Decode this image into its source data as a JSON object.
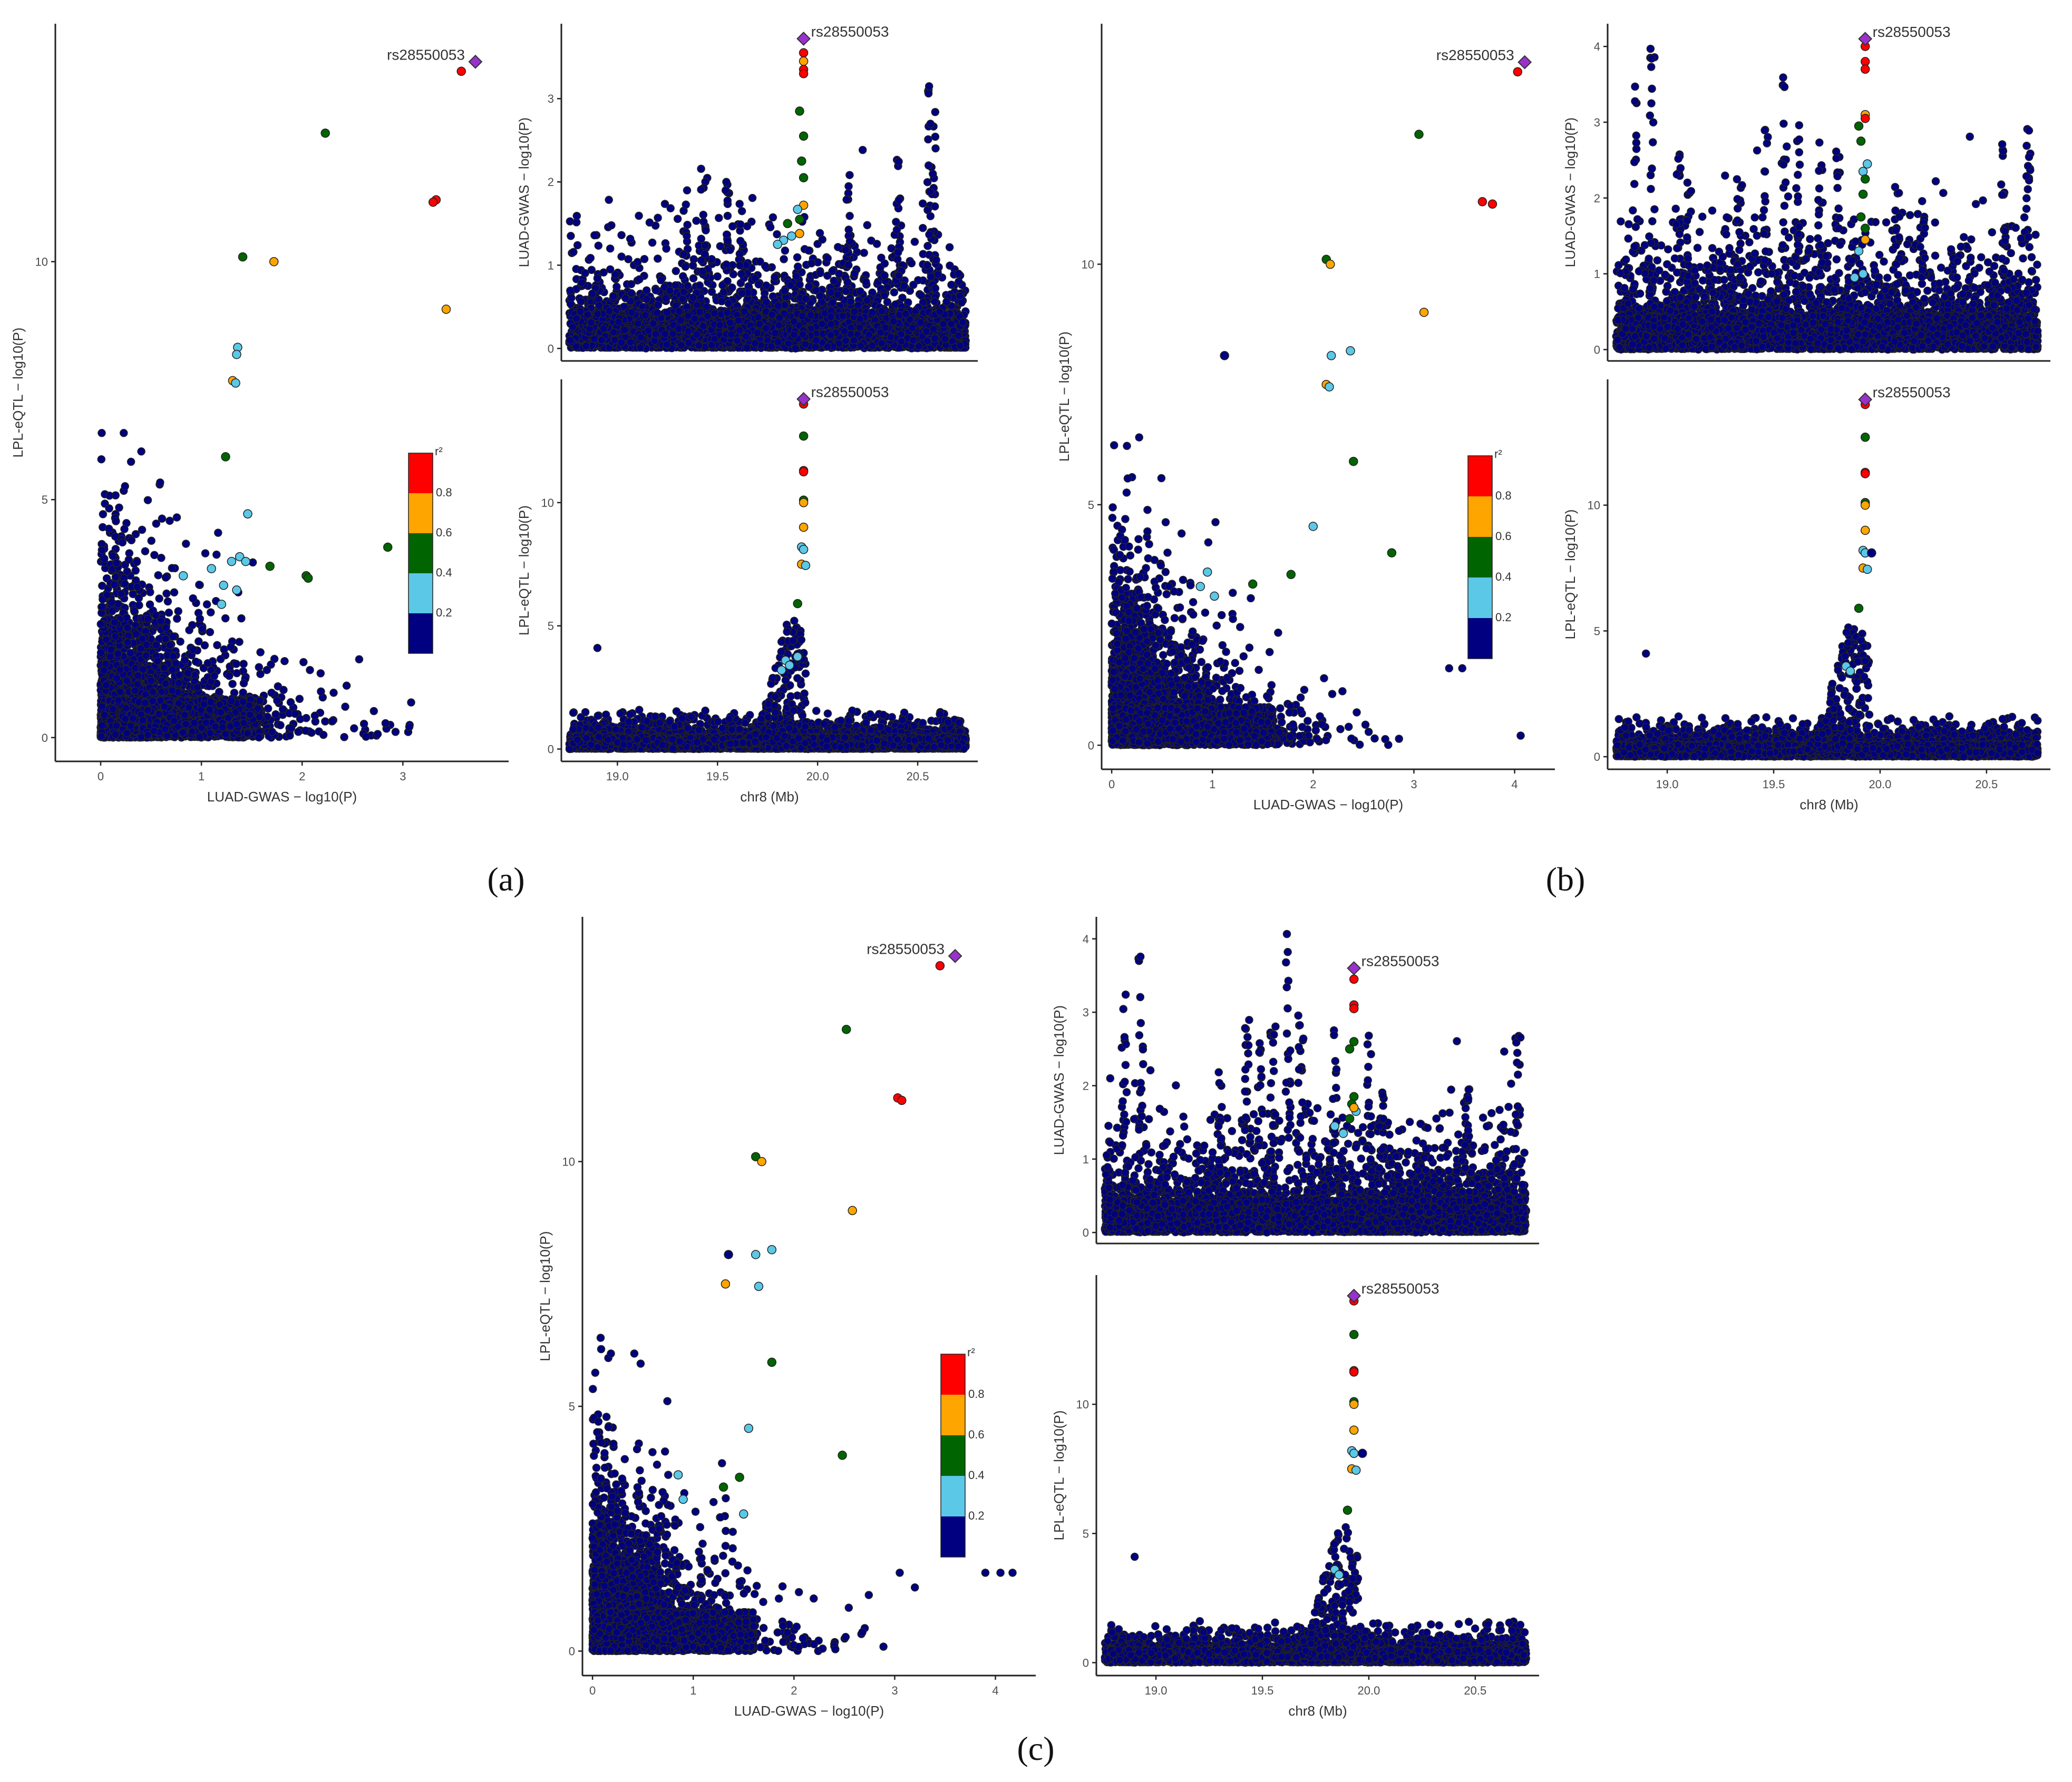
{
  "figure": {
    "panel_labels": [
      "(a)",
      "(b)",
      "(c)"
    ],
    "lead_snp": "rs28550053",
    "colors": {
      "ld_bins": [
        "#000080",
        "#5bc8e8",
        "#006400",
        "#ffa500",
        "#ff0000"
      ],
      "lead": "#9932cc",
      "axis": "#222222",
      "tick_text": "#4d4d4d"
    }
  },
  "chart_data": [
    {
      "id": "a-scatter",
      "panel": "(a)",
      "type": "scatter",
      "xlabel": "LUAD-GWAS − log10(P)",
      "ylabel": "LPL-eQTL − log10(P)",
      "xlim": [
        -0.45,
        4.05
      ],
      "ylim": [
        -0.5,
        15.0
      ],
      "xticks": [
        0,
        1,
        2,
        3
      ],
      "yticks": [
        0,
        5,
        10
      ],
      "lead": {
        "x": 3.72,
        "y": 14.2,
        "label": "rs28550053"
      },
      "points": [
        [
          3.58,
          14.0,
          4
        ],
        [
          3.33,
          11.3,
          4
        ],
        [
          3.3,
          11.25,
          4
        ],
        [
          2.23,
          12.7,
          2
        ],
        [
          1.41,
          10.1,
          2
        ],
        [
          1.72,
          10.0,
          3
        ],
        [
          3.43,
          9.0,
          3
        ],
        [
          1.36,
          8.2,
          1
        ],
        [
          1.35,
          8.05,
          1
        ],
        [
          1.31,
          7.5,
          3
        ],
        [
          1.34,
          7.45,
          1
        ],
        [
          1.24,
          5.9,
          2
        ],
        [
          2.85,
          4.0,
          2
        ],
        [
          1.68,
          3.6,
          2
        ],
        [
          2.04,
          3.4,
          2
        ],
        [
          2.06,
          3.35,
          2
        ],
        [
          0.82,
          3.4,
          1
        ],
        [
          1.1,
          3.55,
          1
        ],
        [
          1.3,
          3.7,
          1
        ],
        [
          1.38,
          3.8,
          1
        ],
        [
          1.44,
          3.7,
          1
        ],
        [
          1.22,
          3.2,
          1
        ],
        [
          1.35,
          3.1,
          1
        ],
        [
          1.2,
          2.8,
          1
        ],
        [
          1.46,
          4.7,
          1
        ]
      ],
      "background": {
        "seed": 11,
        "count": 2800,
        "shape": "eqtl_scatter",
        "gx": 3.9,
        "gy": 6.4
      },
      "legend": {
        "title": "r²",
        "labels": [
          "0.2",
          "0.4",
          "0.6",
          "0.8"
        ]
      }
    },
    {
      "id": "a-gwas",
      "panel": "(a)",
      "type": "scatter",
      "xlabel": "",
      "ylabel": "LUAD-GWAS − log10(P)",
      "xlim": [
        18.72,
        20.8
      ],
      "ylim": [
        -0.15,
        3.9
      ],
      "xticks": [],
      "yticks": [
        0,
        1,
        2,
        3
      ],
      "lead": {
        "x": 19.93,
        "y": 3.72,
        "label": "rs28550053"
      },
      "points": [
        [
          19.93,
          3.55,
          4
        ],
        [
          19.93,
          3.45,
          3
        ],
        [
          19.93,
          3.35,
          4
        ],
        [
          19.93,
          3.3,
          4
        ],
        [
          19.91,
          2.85,
          2
        ],
        [
          19.93,
          2.55,
          2
        ],
        [
          19.92,
          2.25,
          2
        ],
        [
          19.93,
          2.05,
          2
        ],
        [
          19.93,
          1.72,
          3
        ],
        [
          19.9,
          1.67,
          1
        ],
        [
          19.91,
          1.55,
          2
        ],
        [
          19.85,
          1.5,
          2
        ],
        [
          19.87,
          1.35,
          1
        ],
        [
          19.83,
          1.3,
          1
        ],
        [
          19.8,
          1.25,
          1
        ],
        [
          19.91,
          1.38,
          3
        ]
      ],
      "background": {
        "seed": 23,
        "count": 3200,
        "shape": "gwas",
        "yscale": 1.0,
        "peaks": [
          [
            19.34,
            1.9
          ],
          [
            19.43,
            2.3
          ],
          [
            19.55,
            2.0
          ],
          [
            19.62,
            1.8
          ],
          [
            20.15,
            2.2
          ],
          [
            20.4,
            2.3
          ],
          [
            20.58,
            2.9
          ],
          [
            20.56,
            3.2
          ]
        ]
      }
    },
    {
      "id": "a-eqtl",
      "panel": "(a)",
      "type": "scatter",
      "xlabel": "chr8 (Mb)",
      "ylabel": "LPL-eQTL − log10(P)",
      "xlim": [
        18.72,
        20.8
      ],
      "ylim": [
        -0.5,
        15.0
      ],
      "xticks": [
        19.0,
        19.5,
        20.0,
        20.5
      ],
      "yticks": [
        0,
        5,
        10
      ],
      "lead": {
        "x": 19.93,
        "y": 14.2,
        "label": "rs28550053"
      },
      "points": [
        [
          19.93,
          14.0,
          4
        ],
        [
          19.93,
          12.7,
          2
        ],
        [
          19.93,
          11.3,
          4
        ],
        [
          19.93,
          11.25,
          4
        ],
        [
          19.93,
          10.1,
          2
        ],
        [
          19.93,
          10.0,
          3
        ],
        [
          19.93,
          9.0,
          3
        ],
        [
          19.92,
          8.2,
          1
        ],
        [
          19.93,
          8.1,
          1
        ],
        [
          19.92,
          7.5,
          3
        ],
        [
          19.94,
          7.45,
          1
        ],
        [
          19.9,
          5.9,
          2
        ],
        [
          19.84,
          3.6,
          1
        ],
        [
          19.86,
          3.4,
          1
        ],
        [
          19.82,
          3.2,
          1
        ],
        [
          19.9,
          3.75,
          1
        ]
      ],
      "background": {
        "seed": 37,
        "count": 3200,
        "shape": "eqtl_locus"
      }
    },
    {
      "id": "b-scatter",
      "panel": "(b)",
      "type": "scatter",
      "xlabel": "LUAD-GWAS − log10(P)",
      "ylabel": "LPL-eQTL − log10(P)",
      "xlim": [
        -0.1,
        4.4
      ],
      "ylim": [
        -0.5,
        15.0
      ],
      "xticks": [
        0,
        1,
        2,
        3,
        4
      ],
      "yticks": [
        0,
        5,
        10
      ],
      "lead": {
        "x": 4.1,
        "y": 14.2,
        "label": "rs28550053"
      },
      "points": [
        [
          4.03,
          14.0,
          4
        ],
        [
          3.68,
          11.3,
          4
        ],
        [
          3.78,
          11.25,
          4
        ],
        [
          3.05,
          12.7,
          2
        ],
        [
          2.13,
          10.1,
          2
        ],
        [
          2.17,
          10.0,
          3
        ],
        [
          3.1,
          9.0,
          3
        ],
        [
          2.18,
          8.1,
          1
        ],
        [
          2.37,
          8.2,
          1
        ],
        [
          2.13,
          7.5,
          3
        ],
        [
          2.16,
          7.45,
          1
        ],
        [
          2.4,
          5.9,
          2
        ],
        [
          2.78,
          4.0,
          2
        ],
        [
          1.4,
          3.35,
          2
        ],
        [
          1.78,
          3.55,
          2
        ],
        [
          2.0,
          4.55,
          1
        ],
        [
          1.12,
          8.1,
          0
        ],
        [
          0.95,
          3.6,
          1
        ],
        [
          1.02,
          3.1,
          1
        ],
        [
          0.88,
          3.3,
          1
        ]
      ],
      "background": {
        "seed": 53,
        "count": 2800,
        "shape": "eqtl_scatter",
        "gx": 3.8,
        "gy": 6.4,
        "tail": [
          [
            3.35,
            1.6
          ],
          [
            3.48,
            1.6
          ],
          [
            4.06,
            0.2
          ]
        ]
      },
      "legend": {
        "title": "r²",
        "labels": [
          "0.2",
          "0.4",
          "0.6",
          "0.8"
        ]
      }
    },
    {
      "id": "b-gwas",
      "panel": "(b)",
      "type": "scatter",
      "xlabel": "",
      "ylabel": "LUAD-GWAS − log10(P)",
      "xlim": [
        18.72,
        20.8
      ],
      "ylim": [
        -0.15,
        4.3
      ],
      "xticks": [],
      "yticks": [
        0,
        1,
        2,
        3,
        4
      ],
      "lead": {
        "x": 19.93,
        "y": 4.1,
        "label": "rs28550053"
      },
      "points": [
        [
          19.93,
          4.0,
          4
        ],
        [
          19.93,
          3.8,
          4
        ],
        [
          19.93,
          3.7,
          4
        ],
        [
          19.93,
          3.1,
          3
        ],
        [
          19.93,
          3.05,
          4
        ],
        [
          19.94,
          2.45,
          1
        ],
        [
          19.92,
          2.35,
          1
        ],
        [
          19.91,
          2.75,
          2
        ],
        [
          19.93,
          2.25,
          2
        ],
        [
          19.92,
          2.05,
          2
        ],
        [
          19.91,
          1.75,
          2
        ],
        [
          19.93,
          1.6,
          2
        ],
        [
          19.9,
          1.3,
          1
        ],
        [
          19.92,
          1.0,
          1
        ],
        [
          19.88,
          0.95,
          1
        ],
        [
          19.93,
          1.45,
          3
        ],
        [
          19.9,
          2.95,
          2
        ]
      ],
      "background": {
        "seed": 71,
        "count": 3400,
        "shape": "gwas",
        "yscale": 1.25,
        "peaks": [
          [
            18.85,
            3.5
          ],
          [
            18.93,
            4.0
          ],
          [
            19.05,
            2.6
          ],
          [
            19.1,
            2.3
          ],
          [
            19.34,
            2.6
          ],
          [
            19.46,
            2.9
          ],
          [
            19.55,
            3.6
          ],
          [
            19.61,
            3.3
          ],
          [
            19.72,
            2.8
          ],
          [
            19.8,
            2.7
          ],
          [
            20.08,
            2.3
          ],
          [
            20.2,
            2.0
          ],
          [
            20.58,
            2.9
          ],
          [
            20.7,
            3.3
          ]
        ]
      }
    },
    {
      "id": "b-eqtl",
      "panel": "(b)",
      "type": "scatter",
      "xlabel": "chr8 (Mb)",
      "ylabel": "LPL-eQTL − log10(P)",
      "xlim": [
        18.72,
        20.8
      ],
      "ylim": [
        -0.5,
        15.0
      ],
      "xticks": [
        19.0,
        19.5,
        20.0,
        20.5
      ],
      "yticks": [
        0,
        5,
        10
      ],
      "lead": {
        "x": 19.93,
        "y": 14.2,
        "label": "rs28550053"
      },
      "points": [
        [
          19.93,
          14.0,
          4
        ],
        [
          19.93,
          12.7,
          2
        ],
        [
          19.93,
          11.3,
          4
        ],
        [
          19.93,
          11.25,
          4
        ],
        [
          19.93,
          10.1,
          2
        ],
        [
          19.93,
          10.0,
          3
        ],
        [
          19.93,
          9.0,
          3
        ],
        [
          19.92,
          8.2,
          1
        ],
        [
          19.93,
          8.1,
          1
        ],
        [
          19.92,
          7.5,
          3
        ],
        [
          19.94,
          7.45,
          1
        ],
        [
          19.9,
          5.9,
          2
        ],
        [
          19.84,
          3.6,
          1
        ],
        [
          19.86,
          3.4,
          1
        ],
        [
          19.96,
          8.1,
          0
        ]
      ],
      "background": {
        "seed": 89,
        "count": 3200,
        "shape": "eqtl_locus"
      }
    },
    {
      "id": "c-scatter",
      "panel": "(c)",
      "type": "scatter",
      "xlabel": "LUAD-GWAS − log10(P)",
      "ylabel": "LPL-eQTL − log10(P)",
      "xlim": [
        -0.1,
        4.4
      ],
      "ylim": [
        -0.5,
        15.0
      ],
      "xticks": [
        0,
        1,
        2,
        3,
        4
      ],
      "yticks": [
        0,
        5,
        10
      ],
      "lead": {
        "x": 3.6,
        "y": 14.2,
        "label": "rs28550053"
      },
      "points": [
        [
          3.45,
          14.0,
          4
        ],
        [
          3.03,
          11.3,
          4
        ],
        [
          3.07,
          11.25,
          4
        ],
        [
          2.52,
          12.7,
          2
        ],
        [
          1.62,
          10.1,
          2
        ],
        [
          1.68,
          10.0,
          3
        ],
        [
          2.58,
          9.0,
          3
        ],
        [
          1.78,
          8.2,
          1
        ],
        [
          1.62,
          8.1,
          1
        ],
        [
          1.32,
          7.5,
          3
        ],
        [
          1.65,
          7.45,
          1
        ],
        [
          1.78,
          5.9,
          2
        ],
        [
          2.48,
          4.0,
          2
        ],
        [
          1.3,
          3.35,
          2
        ],
        [
          1.46,
          3.55,
          2
        ],
        [
          1.55,
          4.55,
          1
        ],
        [
          1.35,
          8.1,
          0
        ],
        [
          0.85,
          3.6,
          1
        ],
        [
          0.9,
          3.1,
          1
        ],
        [
          1.5,
          2.8,
          1
        ]
      ],
      "background": {
        "seed": 101,
        "count": 2800,
        "shape": "eqtl_scatter",
        "gx": 3.8,
        "gy": 6.4,
        "tail": [
          [
            3.05,
            1.6
          ],
          [
            3.2,
            1.3
          ],
          [
            3.9,
            1.6
          ],
          [
            4.05,
            1.6
          ],
          [
            4.17,
            1.6
          ]
        ]
      },
      "legend": {
        "title": "r²",
        "labels": [
          "0.2",
          "0.4",
          "0.6",
          "0.8"
        ]
      }
    },
    {
      "id": "c-gwas",
      "panel": "(c)",
      "type": "scatter",
      "xlabel": "",
      "ylabel": "LUAD-GWAS − log10(P)",
      "xlim": [
        18.72,
        20.8
      ],
      "ylim": [
        -0.15,
        4.3
      ],
      "xticks": [],
      "yticks": [
        0,
        1,
        2,
        3,
        4
      ],
      "lead": {
        "x": 19.93,
        "y": 3.6,
        "label": "rs28550053"
      },
      "points": [
        [
          19.93,
          3.45,
          4
        ],
        [
          19.93,
          3.1,
          4
        ],
        [
          19.93,
          3.05,
          4
        ],
        [
          19.93,
          2.6,
          2
        ],
        [
          19.91,
          2.5,
          2
        ],
        [
          19.93,
          1.85,
          2
        ],
        [
          19.92,
          1.75,
          2
        ],
        [
          19.94,
          1.65,
          1
        ],
        [
          19.91,
          1.55,
          2
        ],
        [
          19.84,
          1.45,
          1
        ],
        [
          19.88,
          1.35,
          1
        ],
        [
          19.93,
          1.7,
          3
        ]
      ],
      "background": {
        "seed": 127,
        "count": 3400,
        "shape": "gwas",
        "yscale": 1.2,
        "peaks": [
          [
            18.85,
            3.3
          ],
          [
            18.93,
            3.8
          ],
          [
            19.3,
            2.2
          ],
          [
            19.43,
            2.9
          ],
          [
            19.49,
            2.6
          ],
          [
            19.55,
            3.0
          ],
          [
            19.62,
            4.1
          ],
          [
            19.68,
            3.0
          ],
          [
            19.84,
            2.8
          ],
          [
            20.0,
            2.8
          ],
          [
            20.06,
            2.3
          ],
          [
            20.46,
            2.1
          ],
          [
            20.7,
            3.2
          ]
        ]
      }
    },
    {
      "id": "c-eqtl",
      "panel": "(c)",
      "type": "scatter",
      "xlabel": "chr8 (Mb)",
      "ylabel": "LPL-eQTL − log10(P)",
      "xlim": [
        18.72,
        20.8
      ],
      "ylim": [
        -0.5,
        15.0
      ],
      "xticks": [
        19.0,
        19.5,
        20.0,
        20.5
      ],
      "yticks": [
        0,
        5,
        10
      ],
      "lead": {
        "x": 19.93,
        "y": 14.2,
        "label": "rs28550053"
      },
      "points": [
        [
          19.93,
          14.0,
          4
        ],
        [
          19.93,
          12.7,
          2
        ],
        [
          19.93,
          11.3,
          4
        ],
        [
          19.93,
          11.25,
          4
        ],
        [
          19.93,
          10.1,
          2
        ],
        [
          19.93,
          10.0,
          3
        ],
        [
          19.93,
          9.0,
          3
        ],
        [
          19.92,
          8.2,
          1
        ],
        [
          19.93,
          8.1,
          1
        ],
        [
          19.92,
          7.5,
          3
        ],
        [
          19.94,
          7.45,
          1
        ],
        [
          19.9,
          5.9,
          2
        ],
        [
          19.84,
          3.6,
          1
        ],
        [
          19.86,
          3.4,
          1
        ],
        [
          19.97,
          8.1,
          0
        ]
      ],
      "background": {
        "seed": 149,
        "count": 3200,
        "shape": "eqtl_locus"
      }
    }
  ]
}
